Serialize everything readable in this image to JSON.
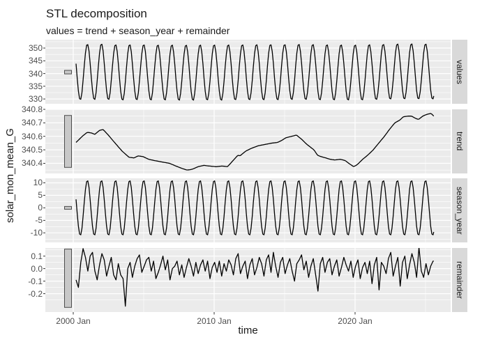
{
  "chart_data": {
    "type": "line",
    "title": "STL decomposition",
    "subtitle": "values = trend + season_year + remainder",
    "xlabel": "time",
    "ylabel": "solar_mon_mean_G",
    "legend": "none",
    "grid": "on",
    "colors": {
      "panel_bg": "#EBEBEB",
      "strip_bg": "#D9D9D9",
      "grid": "#FFFFFF",
      "line": "#000000",
      "tick_text": "#4D4D4D",
      "text": "#1A1A1A",
      "bar_fill": "#C8C8C8",
      "bar_stroke": "#4D4D4D",
      "tick_mark": "#333333"
    },
    "x_axis": {
      "range": [
        1998.02,
        2026.78
      ],
      "ticks": [
        {
          "t": 2000,
          "label": "2000 Jan"
        },
        {
          "t": 2010,
          "label": "2010 Jan"
        },
        {
          "t": 2020,
          "label": "2020 Jan"
        }
      ],
      "minor": [
        2005,
        2015,
        2025
      ]
    },
    "time": {
      "start": 2000.2,
      "end": 2025.58,
      "points_per_year": 12
    },
    "panels": [
      {
        "name": "values",
        "ylim": [
          328.1,
          353.3
        ],
        "yticks": [
          {
            "v": 350,
            "label": "350"
          },
          {
            "v": 345,
            "label": "345"
          },
          {
            "v": 340,
            "label": "340"
          },
          {
            "v": 335,
            "label": "335"
          },
          {
            "v": 330,
            "label": "330"
          }
        ],
        "minor": [
          332.5,
          337.5,
          342.5,
          347.5,
          352.5
        ],
        "scale_bar": [
          339.85,
          341.25
        ],
        "series": {
          "kind": "sum",
          "components": [
            "trend",
            "season_year",
            "remainder"
          ]
        }
      },
      {
        "name": "trend",
        "ylim": [
          340.325,
          340.8
        ],
        "yticks": [
          {
            "v": 340.8,
            "label": "340.8"
          },
          {
            "v": 340.7,
            "label": "340.7"
          },
          {
            "v": 340.6,
            "label": "340.6"
          },
          {
            "v": 340.5,
            "label": "340.5"
          },
          {
            "v": 340.4,
            "label": "340.4"
          }
        ],
        "minor": [
          340.35,
          340.45,
          340.55,
          340.65,
          340.75
        ],
        "scale_bar": [
          340.37,
          340.755
        ],
        "series": {
          "kind": "points",
          "points": [
            [
              2000.2,
              340.555
            ],
            [
              2000.64,
              340.6
            ],
            [
              2000.99,
              340.63
            ],
            [
              2001.29,
              340.625
            ],
            [
              2001.53,
              340.615
            ],
            [
              2001.88,
              340.645
            ],
            [
              2002.13,
              340.65
            ],
            [
              2002.48,
              340.61
            ],
            [
              2002.97,
              340.55
            ],
            [
              2003.47,
              340.49
            ],
            [
              2003.96,
              340.445
            ],
            [
              2004.31,
              340.44
            ],
            [
              2004.6,
              340.455
            ],
            [
              2004.95,
              340.45
            ],
            [
              2005.35,
              340.43
            ],
            [
              2005.79,
              340.42
            ],
            [
              2006.29,
              340.41
            ],
            [
              2006.83,
              340.4
            ],
            [
              2007.28,
              340.38
            ],
            [
              2007.77,
              340.36
            ],
            [
              2008.07,
              340.35
            ],
            [
              2008.42,
              340.355
            ],
            [
              2008.86,
              340.375
            ],
            [
              2009.26,
              340.385
            ],
            [
              2009.65,
              340.38
            ],
            [
              2010.15,
              340.375
            ],
            [
              2010.54,
              340.38
            ],
            [
              2010.94,
              340.375
            ],
            [
              2011.34,
              340.42
            ],
            [
              2011.68,
              340.46
            ],
            [
              2011.83,
              340.455
            ],
            [
              2012.23,
              340.49
            ],
            [
              2012.62,
              340.51
            ],
            [
              2013.12,
              340.53
            ],
            [
              2013.61,
              340.54
            ],
            [
              2014.11,
              340.55
            ],
            [
              2014.5,
              340.555
            ],
            [
              2014.8,
              340.57
            ],
            [
              2015.1,
              340.59
            ],
            [
              2015.5,
              340.6
            ],
            [
              2015.84,
              340.61
            ],
            [
              2016.24,
              340.575
            ],
            [
              2016.58,
              340.54
            ],
            [
              2017.08,
              340.5
            ],
            [
              2017.33,
              340.46
            ],
            [
              2017.57,
              340.45
            ],
            [
              2017.92,
              340.44
            ],
            [
              2018.22,
              340.43
            ],
            [
              2018.56,
              340.425
            ],
            [
              2018.96,
              340.43
            ],
            [
              2019.31,
              340.42
            ],
            [
              2019.55,
              340.4
            ],
            [
              2019.9,
              340.375
            ],
            [
              2020.15,
              340.39
            ],
            [
              2020.54,
              340.43
            ],
            [
              2020.89,
              340.46
            ],
            [
              2021.29,
              340.5
            ],
            [
              2021.68,
              340.55
            ],
            [
              2022.08,
              340.6
            ],
            [
              2022.43,
              340.65
            ],
            [
              2022.82,
              340.7
            ],
            [
              2023.17,
              340.72
            ],
            [
              2023.42,
              340.745
            ],
            [
              2023.76,
              340.75
            ],
            [
              2024.01,
              340.75
            ],
            [
              2024.26,
              340.735
            ],
            [
              2024.5,
              340.725
            ],
            [
              2024.8,
              340.75
            ],
            [
              2025.15,
              340.765
            ],
            [
              2025.4,
              340.77
            ],
            [
              2025.58,
              340.75
            ]
          ]
        }
      },
      {
        "name": "season_year",
        "ylim": [
          -13.8,
          11.8
        ],
        "yticks": [
          {
            "v": 10,
            "label": "10"
          },
          {
            "v": 5,
            "label": "5"
          },
          {
            "v": 0,
            "label": "0"
          },
          {
            "v": -5,
            "label": "-5"
          },
          {
            "v": -10,
            "label": "-10"
          }
        ],
        "minor": [
          -12.5,
          -7.5,
          -2.5,
          2.5,
          7.5
        ],
        "scale_bar": [
          -0.55,
          0.55
        ],
        "series": {
          "kind": "seasonal",
          "mean": 0,
          "amplitude": 11,
          "period_years": 1,
          "peak_month": "Jan"
        }
      },
      {
        "name": "remainder",
        "ylim": [
          -0.347,
          0.165
        ],
        "yticks": [
          {
            "v": 0.1,
            "label": "0.1"
          },
          {
            "v": 0.0,
            "label": "0.0"
          },
          {
            "v": -0.1,
            "label": "-0.1"
          },
          {
            "v": -0.2,
            "label": "-0.2"
          }
        ],
        "minor": [
          -0.25,
          -0.15,
          -0.05,
          0.05,
          0.15
        ],
        "scale_bar": [
          -0.31,
          0.156
        ],
        "series": {
          "kind": "samples",
          "t0": 2000.2,
          "dt": 0.166667,
          "values": [
            -0.09,
            -0.15,
            0.05,
            0.16,
            0.09,
            -0.02,
            0.1,
            0.13,
            -0.02,
            -0.09,
            0.03,
            0.12,
            0.07,
            -0.06,
            0.02,
            0.09,
            -0.05,
            -0.09,
            0.04,
            -0.05,
            -0.08,
            -0.3,
            0.0,
            0.05,
            -0.07,
            0.02,
            0.08,
            0.11,
            -0.03,
            0.02,
            0.07,
            0.09,
            -0.02,
            0.06,
            -0.08,
            -0.03,
            0.03,
            0.1,
            -0.01,
            0.07,
            -0.09,
            0.0,
            0.02,
            0.06,
            -0.05,
            0.03,
            -0.07,
            0.01,
            0.08,
            0.02,
            -0.06,
            0.05,
            -0.04,
            0.03,
            0.07,
            -0.02,
            0.06,
            -0.08,
            0.01,
            0.05,
            -0.03,
            0.06,
            -0.06,
            0.04,
            -0.02,
            0.07,
            0.03,
            -0.05,
            0.08,
            0.12,
            -0.04,
            0.02,
            0.06,
            -0.08,
            0.03,
            0.08,
            -0.05,
            0.01,
            0.09,
            0.04,
            -0.06,
            0.07,
            0.11,
            -0.03,
            0.13,
            0.02,
            -0.07,
            0.05,
            0.09,
            -0.04,
            0.03,
            0.08,
            -0.02,
            -0.1,
            0.04,
            0.07,
            0.11,
            -0.01,
            0.06,
            -0.07,
            0.02,
            0.08,
            -0.05,
            -0.18,
            0.04,
            0.09,
            -0.03,
            0.05,
            0.08,
            -0.05,
            0.02,
            0.07,
            -0.06,
            0.01,
            0.09,
            0.03,
            -0.02,
            0.06,
            -0.07,
            0.02,
            0.07,
            -0.08,
            0.01,
            0.05,
            -0.04,
            0.06,
            -0.12,
            0.03,
            0.09,
            -0.17,
            0.05,
            0.02,
            -0.04,
            0.08,
            0.13,
            -0.06,
            0.02,
            0.09,
            -0.14,
            0.05,
            0.1,
            -0.08,
            0.03,
            0.12,
            0.05,
            -0.07,
            0.17,
            -0.02,
            -0.07,
            0.04,
            -0.05,
            0.02,
            0.06
          ]
        }
      }
    ]
  }
}
